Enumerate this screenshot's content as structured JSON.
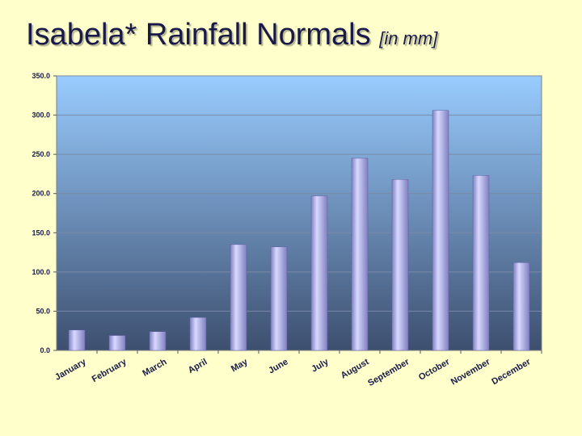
{
  "title": "Isabela* Rainfall Normals",
  "title_unit": "[in mm]",
  "colors": {
    "background": "#ffffcc",
    "plot_top": "#99ccff",
    "plot_bottom": "#3d4f6f",
    "bar_light": "#d8d8ff",
    "bar_dark": "#8080c0"
  },
  "chart_data": {
    "type": "bar",
    "categories": [
      "January",
      "February",
      "March",
      "April",
      "May",
      "June",
      "July",
      "August",
      "September",
      "October",
      "November",
      "December"
    ],
    "values": [
      26,
      19,
      24,
      42,
      135,
      132,
      197,
      245,
      218,
      306,
      223,
      112
    ],
    "yticks": [
      "0.0",
      "50.0",
      "100.0",
      "150.0",
      "200.0",
      "250.0",
      "300.0",
      "350.0"
    ],
    "ylim": [
      0,
      350
    ],
    "grid": true,
    "legend": "none"
  }
}
